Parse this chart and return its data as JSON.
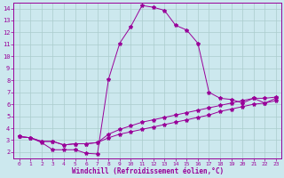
{
  "xlabel": "Windchill (Refroidissement éolien,°C)",
  "background_color": "#cce8ee",
  "line_color": "#990099",
  "grid_color": "#aacccc",
  "xlim": [
    0,
    23
  ],
  "ylim": [
    1.5,
    14.5
  ],
  "xticks": [
    0,
    1,
    2,
    3,
    4,
    5,
    6,
    7,
    8,
    9,
    10,
    11,
    12,
    13,
    14,
    15,
    16,
    17,
    18,
    19,
    20,
    21,
    22,
    23
  ],
  "yticks": [
    2,
    3,
    4,
    5,
    6,
    7,
    8,
    9,
    10,
    11,
    12,
    13,
    14
  ],
  "curve1_x": [
    0,
    1,
    2,
    3,
    4,
    5,
    6,
    7,
    8,
    9,
    10,
    11,
    12,
    13,
    14,
    15,
    16,
    17,
    18,
    19,
    20,
    21,
    22,
    23
  ],
  "curve1_y": [
    3.3,
    3.2,
    2.8,
    2.2,
    2.2,
    2.2,
    1.9,
    1.85,
    8.1,
    11.1,
    12.5,
    14.25,
    14.1,
    13.85,
    12.6,
    12.2,
    11.1,
    7.0,
    6.5,
    6.4,
    6.1,
    6.5,
    6.1,
    6.5
  ],
  "curve2_x": [
    0,
    1,
    2,
    3,
    4,
    5,
    6,
    7,
    8,
    9,
    10,
    11,
    12,
    13,
    14,
    15,
    16,
    17,
    18,
    19,
    20,
    21,
    22,
    23
  ],
  "curve2_y": [
    3.3,
    3.2,
    2.9,
    2.9,
    2.6,
    2.7,
    2.7,
    2.8,
    3.5,
    3.9,
    4.2,
    4.5,
    4.7,
    4.9,
    5.1,
    5.3,
    5.5,
    5.7,
    5.9,
    6.1,
    6.3,
    6.5,
    6.5,
    6.6
  ],
  "curve3_x": [
    0,
    1,
    2,
    3,
    4,
    5,
    6,
    7,
    8,
    9,
    10,
    11,
    12,
    13,
    14,
    15,
    16,
    17,
    18,
    19,
    20,
    21,
    22,
    23
  ],
  "curve3_y": [
    3.3,
    3.2,
    2.9,
    2.9,
    2.6,
    2.7,
    2.7,
    2.8,
    3.2,
    3.5,
    3.7,
    3.9,
    4.1,
    4.3,
    4.5,
    4.7,
    4.9,
    5.1,
    5.4,
    5.6,
    5.8,
    6.0,
    6.1,
    6.3
  ],
  "marker": "*",
  "markersize": 3,
  "linewidth": 0.7
}
